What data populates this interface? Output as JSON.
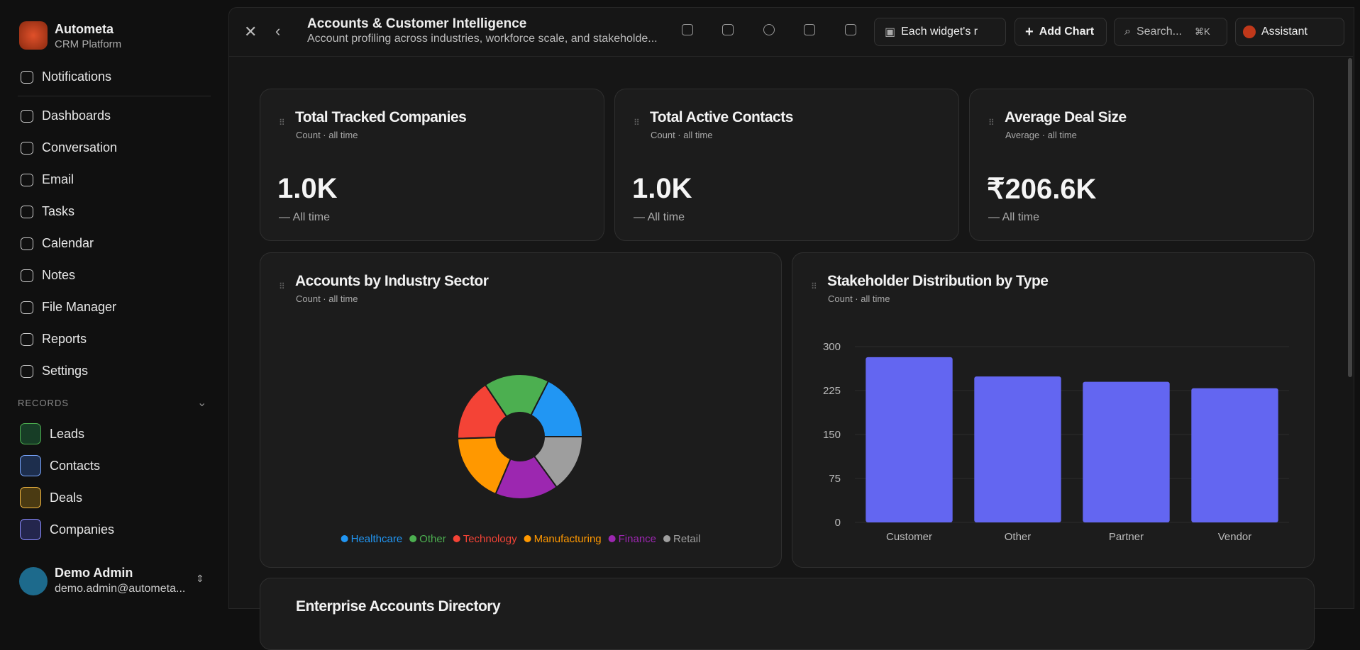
{
  "sidebar": {
    "brand": "Autometa",
    "subtitle": "CRM Platform",
    "nav": [
      "Notifications",
      "Dashboards",
      "Conversation",
      "Email",
      "Tasks",
      "Calendar",
      "Notes",
      "File Manager",
      "Reports",
      "Settings"
    ],
    "section": "RECORDS",
    "records": [
      "Leads",
      "Contacts",
      "Deals",
      "Companies"
    ],
    "user": {
      "name": "Demo Admin",
      "email": "demo.admin@autometa..."
    }
  },
  "header": {
    "title": "Accounts & Customer Intelligence",
    "subtitle": "Account profiling across industries, workforce scale, and stakeholde...",
    "date_filter": "Each widget's r",
    "add_chart": "Add Chart",
    "search": "Search...",
    "search_shortcut": "⌘K",
    "assistant": "Assistant"
  },
  "kpis": [
    {
      "title": "Total Tracked Companies",
      "subtitle": "Count · all time",
      "value": "1.0K",
      "footer": "— All time"
    },
    {
      "title": "Total Active Contacts",
      "subtitle": "Count · all time",
      "value": "1.0K",
      "footer": "— All time"
    },
    {
      "title": "Average Deal Size",
      "subtitle": "Average · all time",
      "value": "₹206.6K",
      "footer": "— All time"
    }
  ],
  "chart_data": [
    {
      "type": "pie",
      "title": "Accounts by Industry Sector",
      "subtitle": "Count · all time",
      "categories": [
        "Healthcare",
        "Other",
        "Technology",
        "Manufacturing",
        "Finance",
        "Retail"
      ],
      "values": [
        175,
        169,
        161,
        181,
        164,
        150
      ],
      "colors": [
        "#2196f3",
        "#4caf50",
        "#f44336",
        "#ff9800",
        "#9c27b0",
        "#9e9e9e"
      ],
      "donut": true,
      "legend": "bottom"
    },
    {
      "type": "bar",
      "title": "Stakeholder Distribution by Type",
      "subtitle": "Count · all time",
      "categories": [
        "Customer",
        "Other",
        "Partner",
        "Vendor"
      ],
      "values": [
        282,
        249,
        240,
        229
      ],
      "color": "#6366f1",
      "ylim": [
        0,
        300
      ],
      "yticks": [
        0,
        75,
        150,
        225,
        300
      ],
      "grid": true
    }
  ],
  "table": {
    "title": "Enterprise Accounts Directory"
  }
}
